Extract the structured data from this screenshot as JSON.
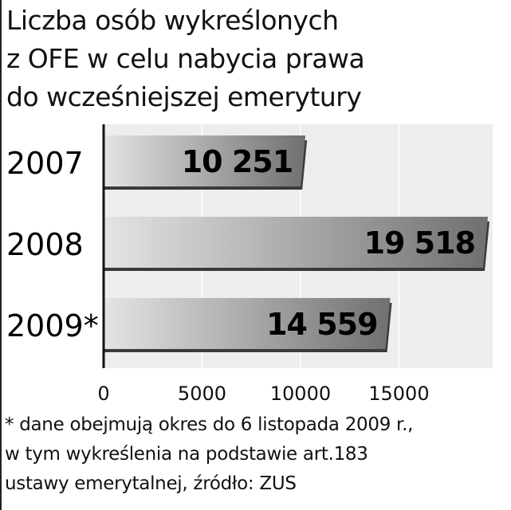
{
  "title_lines": [
    "Liczba osób wykreślonych",
    "z OFE w celu nabycia prawa",
    "do wcześniejszej emerytury"
  ],
  "footnote_lines": [
    "* dane obejmują okres do 6 listopada 2009 r.,",
    "w tym wykreślenia na podstawie art.183",
    "ustawy emerytalnej, źródło: ZUS"
  ],
  "chart_data": {
    "type": "bar",
    "orientation": "horizontal",
    "title": "Liczba osób wykreślonych z OFE w celu nabycia prawa do wcześniejszej emerytury",
    "categories": [
      "2007",
      "2008",
      "2009*"
    ],
    "values": [
      10251,
      19518,
      14559
    ],
    "value_labels": [
      "10 251",
      "19 518",
      "14 559"
    ],
    "xlim": [
      0,
      19518
    ],
    "xticks": [
      0,
      5000,
      10000,
      15000
    ],
    "xtick_labels": [
      "0",
      "5000",
      "10000",
      "15000"
    ],
    "grid": true,
    "legend": "none"
  },
  "colors": {
    "bar_light": "#e4e4e4",
    "bar_dark": "#707070",
    "bar_shadow": "#3a3a3a",
    "axis": "#111111",
    "grid": "#ffffff",
    "plot_background": "#ededed"
  }
}
